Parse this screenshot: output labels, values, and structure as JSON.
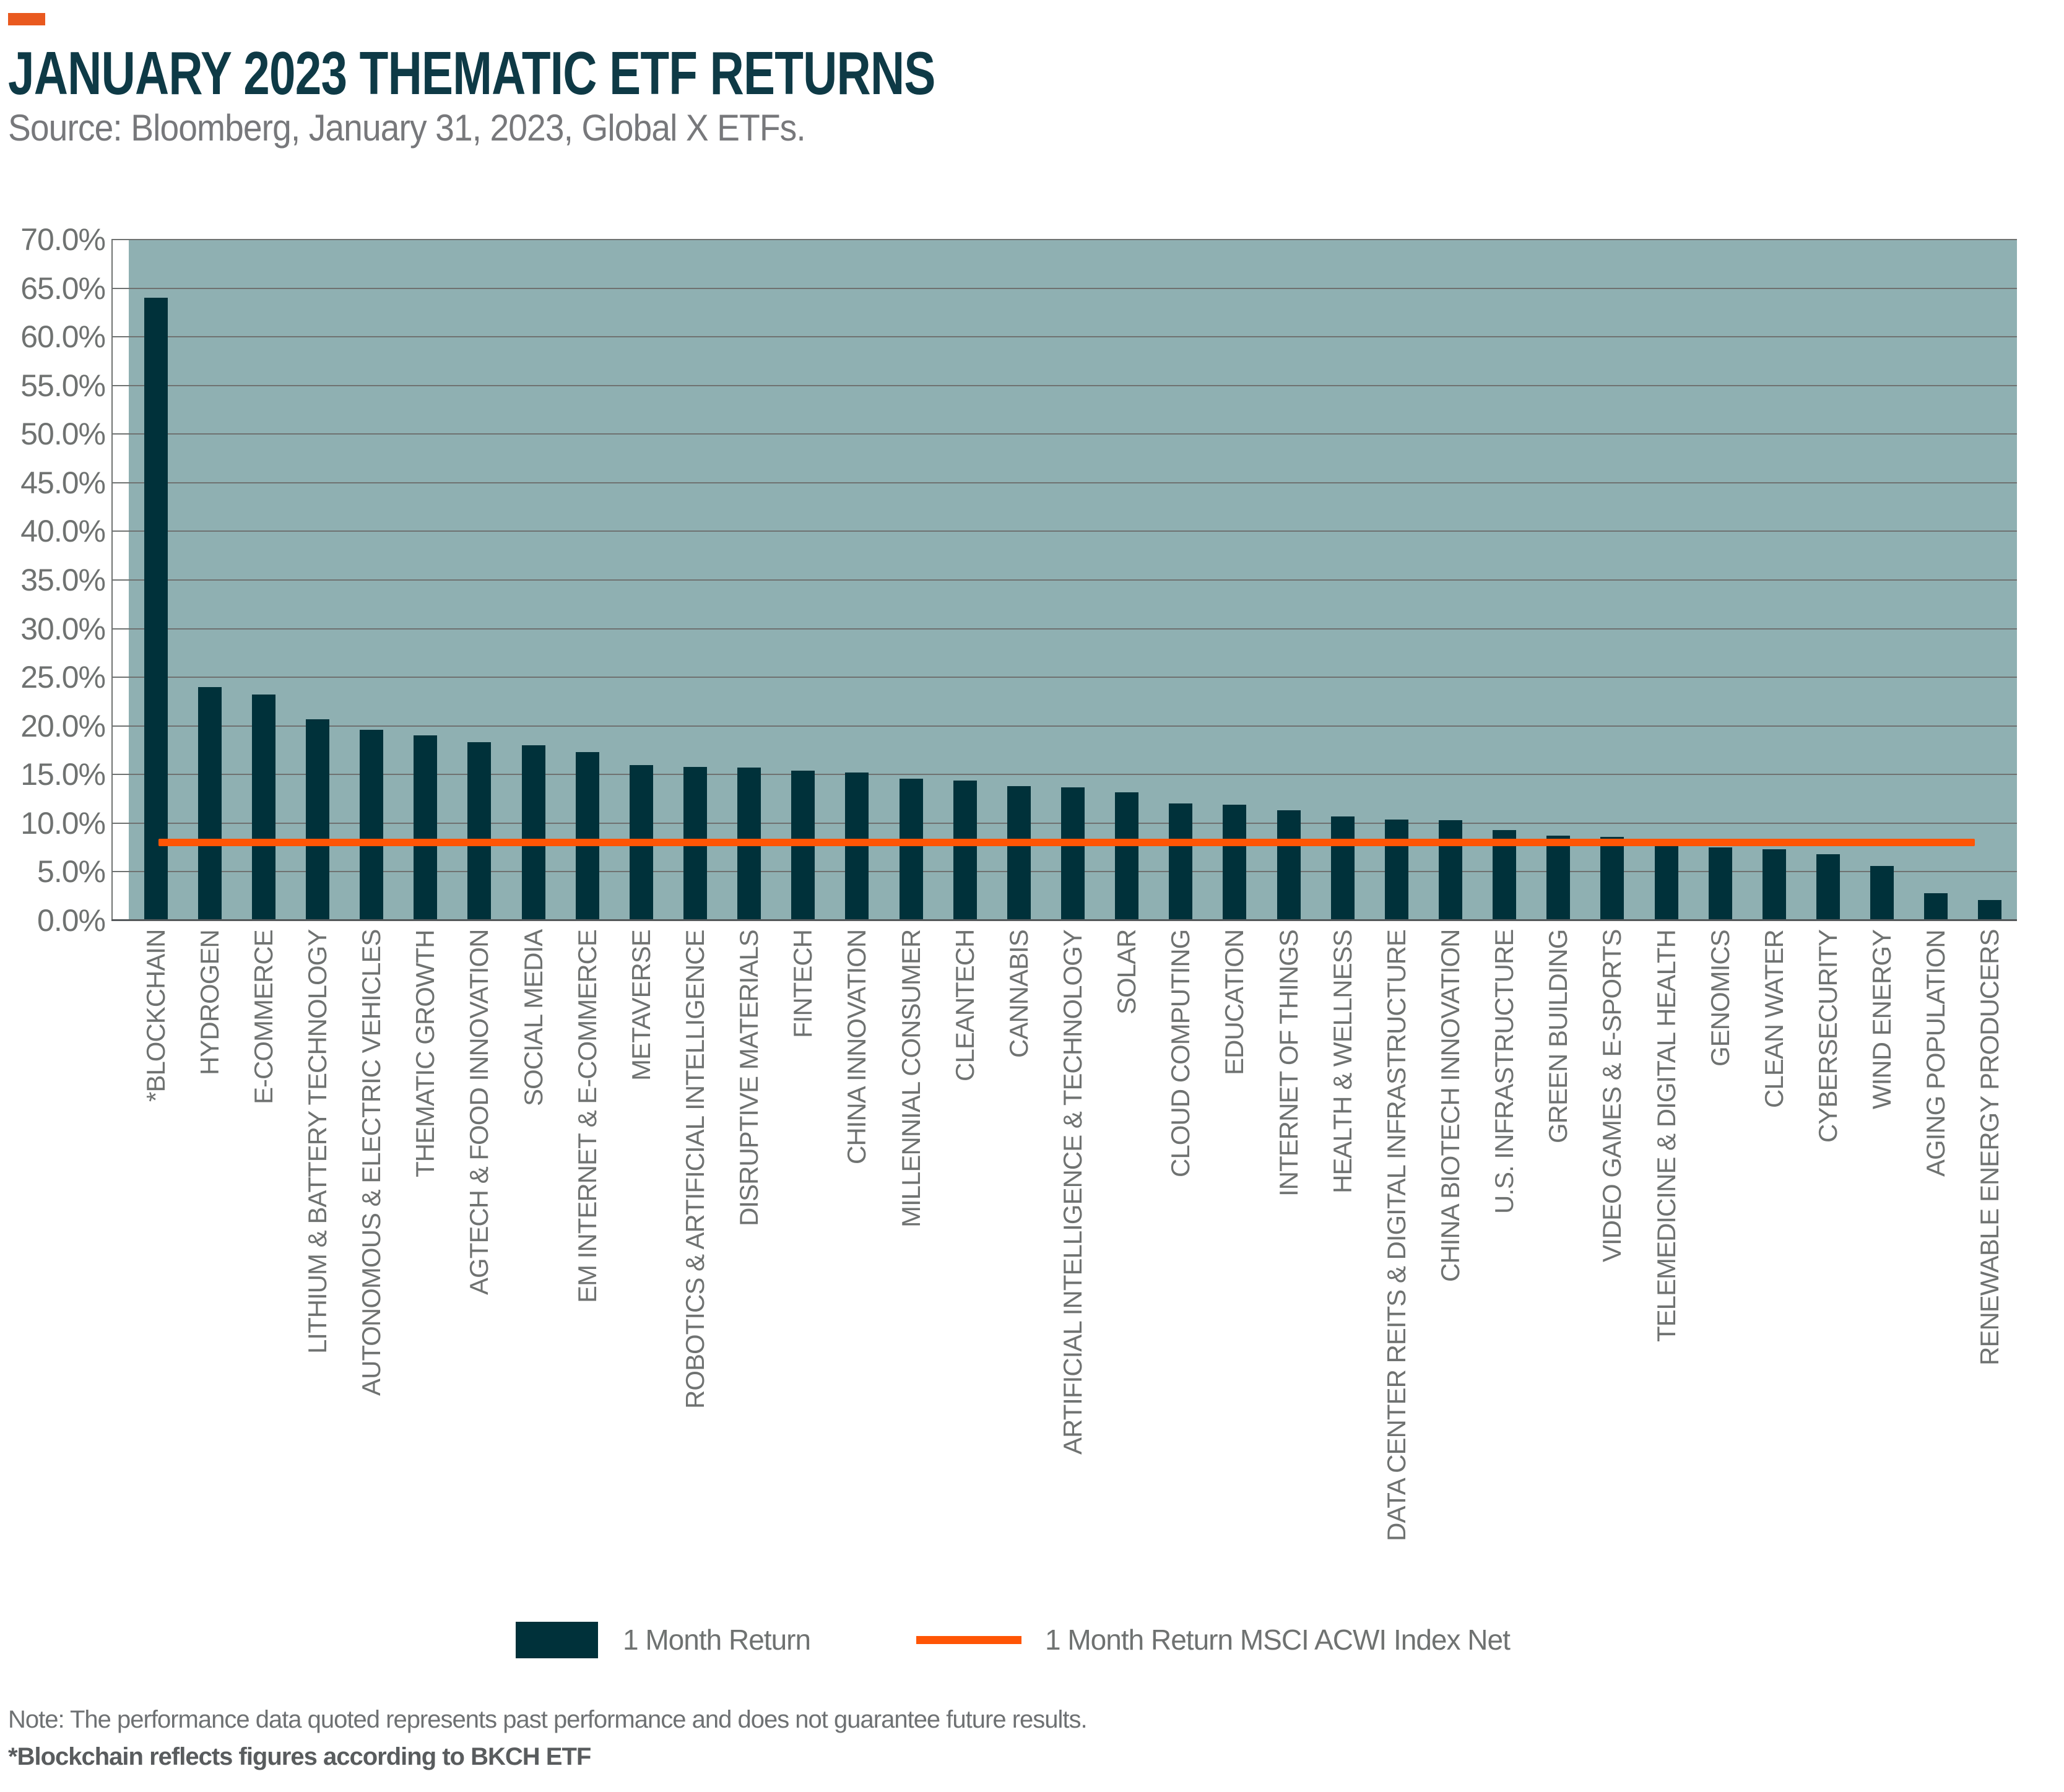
{
  "header": {
    "accent_color": "#E9591F",
    "title": "JANUARY 2023 THEMATIC ETF RETURNS",
    "subtitle": "Source: Bloomberg, January 31, 2023, Global X ETFs."
  },
  "chart_data": {
    "type": "bar",
    "title": "JANUARY 2023 THEMATIC ETF RETURNS",
    "categories": [
      "*BLOCKCHAIN",
      "HYDROGEN",
      "E-COMMERCE",
      "LITHIUM & BATTERY TECHNOLOGY",
      "AUTONOMOUS & ELECTRIC VEHICLES",
      "THEMATIC GROWTH",
      "AGTECH & FOOD INNOVATION",
      "SOCIAL MEDIA",
      "EM INTERNET & E-COMMERCE",
      "METAVERSE",
      "ROBOTICS & ARTIFICIAL INTELLIGENCE",
      "DISRUPTIVE MATERIALS",
      "FINTECH",
      "CHINA INNOVATION",
      "MILLENNIAL CONSUMER",
      "CLEANTECH",
      "CANNABIS",
      "ARTIFICIAL INTELLIGENCE & TECHNOLOGY",
      "SOLAR",
      "CLOUD COMPUTING",
      "EDUCATION",
      "INTERNET OF THINGS",
      "HEALTH & WELLNESS",
      "DATA CENTER REITS & DIGITAL INFRASTRUCTURE",
      "CHINA BIOTECH INNOVATION",
      "U.S. INFRASTRUCTURE",
      "GREEN BUILDING",
      "VIDEO GAMES & E-SPORTS",
      "TELEMEDICINE & DIGITAL HEALTH",
      "GENOMICS",
      "CLEAN WATER",
      "CYBERSECURITY",
      "WIND ENERGY",
      "AGING POPULATION",
      "RENEWABLE ENERGY PRODUCERS"
    ],
    "values": [
      64.0,
      24.0,
      23.2,
      20.7,
      19.6,
      19.0,
      18.3,
      18.0,
      17.3,
      16.0,
      15.8,
      15.7,
      15.4,
      15.2,
      14.6,
      14.4,
      13.8,
      13.7,
      13.2,
      12.0,
      11.9,
      11.3,
      10.7,
      10.4,
      10.3,
      9.3,
      8.7,
      8.6,
      7.8,
      7.5,
      7.3,
      6.8,
      5.6,
      2.8,
      2.1
    ],
    "series": [
      {
        "name": "1 Month Return",
        "type": "bar",
        "color": "#00313A"
      },
      {
        "name": "1 Month Return MSCI ACWI Index Net",
        "type": "line",
        "color": "#FF5505",
        "value": 8.0
      }
    ],
    "xlabel": "",
    "ylabel": "",
    "ylim": [
      0,
      70
    ],
    "ytick_step": 5,
    "ytick_suffix": "%",
    "grid": true,
    "plot_bg": "#8FB0B2",
    "gridline_color": "#6F7271",
    "legend_position": "bottom"
  },
  "legend": {
    "bar_label": "1 Month Return",
    "line_label": "1 Month Return MSCI ACWI Index Net"
  },
  "footnotes": {
    "line1": "Note: The performance data quoted represents past performance and does not guarantee future results.",
    "line2": "*Blockchain reflects figures according to BKCH ETF"
  }
}
